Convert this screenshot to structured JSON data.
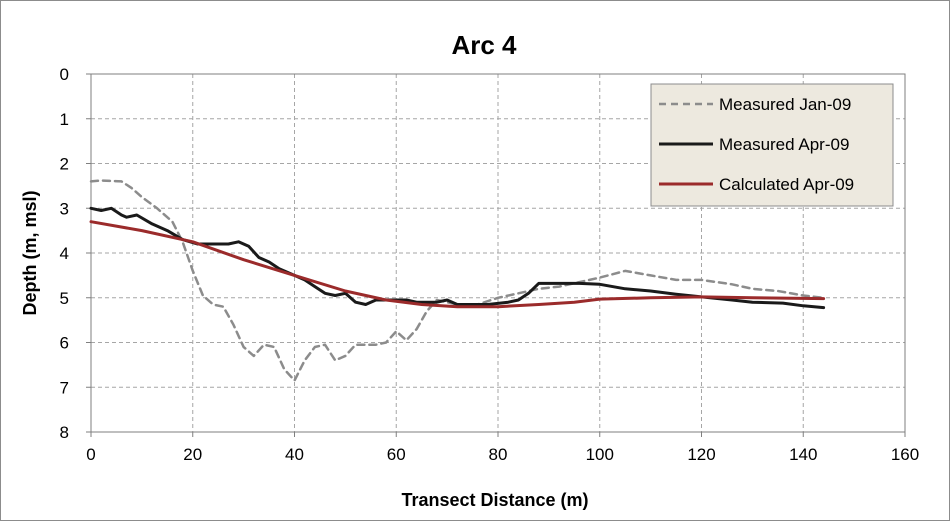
{
  "chart_data": {
    "type": "line",
    "title": "Arc 4",
    "xlabel": "Transect Distance (m)",
    "ylabel": "Depth (m, msl)",
    "xlim": [
      0,
      160
    ],
    "ylim": [
      0,
      8
    ],
    "y_inverted": true,
    "xticks": [
      "0",
      "20",
      "40",
      "60",
      "80",
      "100",
      "120",
      "140",
      "160"
    ],
    "yticks": [
      "0",
      "1",
      "2",
      "3",
      "4",
      "5",
      "6",
      "7",
      "8"
    ],
    "grid": "dashed",
    "legend_position": "top-right",
    "colors": {
      "background": "#ffffff",
      "legend_bg": "#ede9df",
      "grid": "#a6a6a6"
    },
    "series": [
      {
        "name": "Measured Jan-09",
        "color": "#8c8c8c",
        "style": "dashed",
        "points": [
          [
            0,
            2.4
          ],
          [
            2,
            2.38
          ],
          [
            6,
            2.4
          ],
          [
            8,
            2.55
          ],
          [
            10,
            2.75
          ],
          [
            13,
            3.0
          ],
          [
            16,
            3.3
          ],
          [
            18,
            3.75
          ],
          [
            20,
            4.4
          ],
          [
            22,
            4.95
          ],
          [
            24,
            5.15
          ],
          [
            26,
            5.2
          ],
          [
            28,
            5.6
          ],
          [
            30,
            6.1
          ],
          [
            32,
            6.3
          ],
          [
            34,
            6.05
          ],
          [
            36,
            6.1
          ],
          [
            38,
            6.6
          ],
          [
            40,
            6.85
          ],
          [
            42,
            6.4
          ],
          [
            44,
            6.1
          ],
          [
            46,
            6.05
          ],
          [
            48,
            6.4
          ],
          [
            50,
            6.3
          ],
          [
            52,
            6.05
          ],
          [
            54,
            6.05
          ],
          [
            56,
            6.05
          ],
          [
            58,
            6.0
          ],
          [
            60,
            5.75
          ],
          [
            62,
            5.95
          ],
          [
            64,
            5.7
          ],
          [
            66,
            5.3
          ],
          [
            68,
            5.05
          ],
          [
            70,
            5.1
          ],
          [
            72,
            5.15
          ],
          [
            76,
            5.15
          ],
          [
            80,
            5.0
          ],
          [
            84,
            4.9
          ],
          [
            88,
            4.8
          ],
          [
            92,
            4.75
          ],
          [
            96,
            4.65
          ],
          [
            100,
            4.55
          ],
          [
            105,
            4.4
          ],
          [
            110,
            4.5
          ],
          [
            115,
            4.6
          ],
          [
            120,
            4.6
          ],
          [
            126,
            4.7
          ],
          [
            130,
            4.8
          ],
          [
            135,
            4.85
          ],
          [
            140,
            4.95
          ],
          [
            144,
            5.0
          ]
        ]
      },
      {
        "name": "Measured Apr-09",
        "color": "#1a1a1a",
        "style": "solid",
        "points": [
          [
            0,
            3.0
          ],
          [
            2,
            3.05
          ],
          [
            4,
            3.0
          ],
          [
            6,
            3.15
          ],
          [
            7,
            3.2
          ],
          [
            9,
            3.15
          ],
          [
            12,
            3.35
          ],
          [
            15,
            3.5
          ],
          [
            18,
            3.7
          ],
          [
            21,
            3.8
          ],
          [
            24,
            3.8
          ],
          [
            27,
            3.8
          ],
          [
            29,
            3.75
          ],
          [
            31,
            3.85
          ],
          [
            33,
            4.1
          ],
          [
            35,
            4.2
          ],
          [
            37,
            4.35
          ],
          [
            40,
            4.5
          ],
          [
            42,
            4.6
          ],
          [
            44,
            4.75
          ],
          [
            46,
            4.9
          ],
          [
            48,
            4.95
          ],
          [
            50,
            4.9
          ],
          [
            52,
            5.1
          ],
          [
            54,
            5.15
          ],
          [
            56,
            5.05
          ],
          [
            60,
            5.05
          ],
          [
            62,
            5.05
          ],
          [
            64,
            5.1
          ],
          [
            68,
            5.1
          ],
          [
            70,
            5.05
          ],
          [
            72,
            5.15
          ],
          [
            78,
            5.15
          ],
          [
            82,
            5.1
          ],
          [
            84,
            5.05
          ],
          [
            86,
            4.9
          ],
          [
            88,
            4.68
          ],
          [
            92,
            4.68
          ],
          [
            96,
            4.68
          ],
          [
            100,
            4.7
          ],
          [
            105,
            4.8
          ],
          [
            110,
            4.85
          ],
          [
            115,
            4.92
          ],
          [
            120,
            4.98
          ],
          [
            126,
            5.05
          ],
          [
            130,
            5.1
          ],
          [
            136,
            5.12
          ],
          [
            140,
            5.18
          ],
          [
            144,
            5.22
          ]
        ]
      },
      {
        "name": "Calculated Apr-09",
        "color": "#9b2b2b",
        "style": "solid",
        "points": [
          [
            0,
            3.3
          ],
          [
            10,
            3.5
          ],
          [
            20,
            3.75
          ],
          [
            30,
            4.15
          ],
          [
            40,
            4.5
          ],
          [
            50,
            4.85
          ],
          [
            58,
            5.05
          ],
          [
            65,
            5.15
          ],
          [
            72,
            5.2
          ],
          [
            80,
            5.2
          ],
          [
            88,
            5.15
          ],
          [
            95,
            5.1
          ],
          [
            100,
            5.03
          ],
          [
            110,
            5.0
          ],
          [
            120,
            4.98
          ],
          [
            130,
            5.0
          ],
          [
            144,
            5.02
          ]
        ]
      }
    ]
  }
}
